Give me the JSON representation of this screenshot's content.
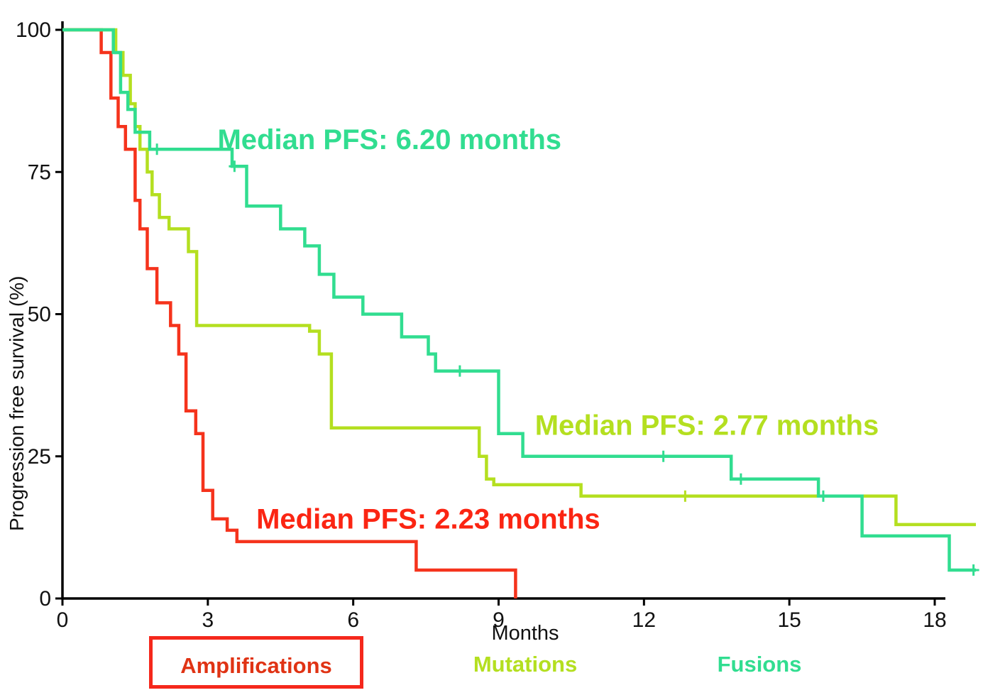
{
  "chart_data": {
    "type": "line",
    "subtype": "kaplan-meier-step",
    "title": "",
    "xlabel": "Months",
    "ylabel": "Progression free survival (%)",
    "xlim": [
      0,
      18.9
    ],
    "ylim": [
      0,
      100
    ],
    "xticks": [
      0,
      3,
      6,
      9,
      12,
      15,
      18
    ],
    "yticks": [
      0,
      25,
      50,
      75,
      100
    ],
    "grid": false,
    "legend_position": "bottom",
    "series": [
      {
        "name": "Amplifications",
        "color": "#f5331c",
        "median_pfs_months": 2.23,
        "points": [
          [
            0,
            100
          ],
          [
            0.8,
            96
          ],
          [
            1.0,
            88
          ],
          [
            1.15,
            83
          ],
          [
            1.3,
            79
          ],
          [
            1.5,
            70
          ],
          [
            1.6,
            65
          ],
          [
            1.75,
            58
          ],
          [
            1.95,
            52
          ],
          [
            2.23,
            48
          ],
          [
            2.4,
            43
          ],
          [
            2.55,
            33
          ],
          [
            2.75,
            29
          ],
          [
            2.9,
            19
          ],
          [
            3.1,
            14
          ],
          [
            3.4,
            12
          ],
          [
            3.6,
            10
          ],
          [
            7.3,
            5
          ],
          [
            9.35,
            0
          ]
        ],
        "censor_marks": []
      },
      {
        "name": "Mutations",
        "color": "#b4df20",
        "median_pfs_months": 2.77,
        "points": [
          [
            0,
            100
          ],
          [
            1.1,
            96
          ],
          [
            1.25,
            92
          ],
          [
            1.4,
            87
          ],
          [
            1.5,
            83
          ],
          [
            1.6,
            79
          ],
          [
            1.75,
            75
          ],
          [
            1.85,
            71
          ],
          [
            2.0,
            67
          ],
          [
            2.2,
            65
          ],
          [
            2.6,
            61
          ],
          [
            2.77,
            48
          ],
          [
            5.1,
            47
          ],
          [
            5.3,
            43
          ],
          [
            5.55,
            30
          ],
          [
            8.6,
            25
          ],
          [
            8.75,
            21
          ],
          [
            8.9,
            20
          ],
          [
            10.7,
            18
          ],
          [
            17.2,
            13
          ],
          [
            18.85,
            13
          ]
        ],
        "censor_marks": [
          [
            12.85,
            18
          ]
        ]
      },
      {
        "name": "Fusions",
        "color": "#31dd90",
        "median_pfs_months": 6.2,
        "points": [
          [
            0,
            100
          ],
          [
            1.05,
            96
          ],
          [
            1.2,
            89
          ],
          [
            1.35,
            86
          ],
          [
            1.5,
            82
          ],
          [
            1.8,
            79
          ],
          [
            3.5,
            76
          ],
          [
            3.8,
            69
          ],
          [
            4.5,
            65
          ],
          [
            5.0,
            62
          ],
          [
            5.3,
            57
          ],
          [
            5.6,
            53
          ],
          [
            6.2,
            50
          ],
          [
            7.0,
            46
          ],
          [
            7.55,
            43
          ],
          [
            7.7,
            40
          ],
          [
            9.0,
            29
          ],
          [
            9.5,
            25
          ],
          [
            13.8,
            21
          ],
          [
            15.6,
            18
          ],
          [
            16.5,
            11
          ],
          [
            18.3,
            5
          ],
          [
            18.85,
            5
          ]
        ],
        "censor_marks": [
          [
            1.95,
            79
          ],
          [
            3.55,
            76
          ],
          [
            8.2,
            40
          ],
          [
            12.4,
            25
          ],
          [
            14.0,
            21
          ],
          [
            15.7,
            18
          ],
          [
            18.8,
            5
          ]
        ]
      }
    ],
    "annotations": [
      {
        "text": "Median PFS: 6.20 months",
        "color": "#31dd90",
        "x": 3.2,
        "y": 79
      },
      {
        "text": "Median PFS: 2.77 months",
        "color": "#b4df20",
        "x": 9.75,
        "y": 28.8
      },
      {
        "text": "Median PFS: 2.23 months",
        "color": "#fb2513",
        "x": 4.0,
        "y": 12.3
      }
    ]
  },
  "legend": {
    "items": [
      {
        "label": "Amplifications",
        "color": "#e03314",
        "boxed": true,
        "border_color": "#f5281c"
      },
      {
        "label": "Mutations",
        "color": "#b4df20",
        "boxed": false,
        "border_color": ""
      },
      {
        "label": "Fusions",
        "color": "#31dd90",
        "boxed": false,
        "border_color": ""
      }
    ]
  }
}
